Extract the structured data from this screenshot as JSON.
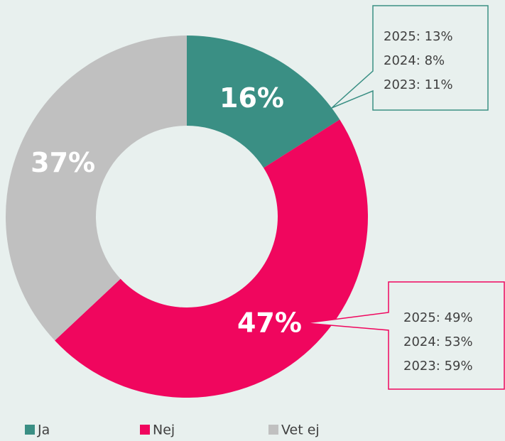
{
  "chart_data": {
    "type": "pie",
    "categories": [
      "Ja",
      "Nej",
      "Vet ej"
    ],
    "values": [
      16,
      47,
      37
    ],
    "value_labels": [
      "16%",
      "47%",
      "37%"
    ],
    "colors": [
      "#3a8f84",
      "#f0065e",
      "#c0c0c0"
    ],
    "donut": true,
    "legend": "bottom",
    "annotations": [
      [
        "2025: 13%",
        "2024: 8%",
        "2023: 11%"
      ],
      [
        "2025: 49%",
        "2024: 53%",
        "2023: 59%"
      ]
    ]
  }
}
